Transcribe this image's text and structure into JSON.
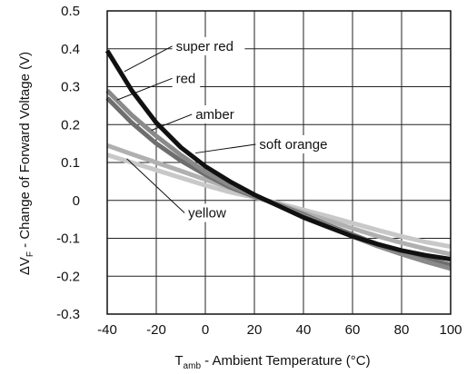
{
  "chart_data": {
    "type": "line",
    "xlabel_main": "T",
    "xlabel_sub": "amb",
    "xlabel_rest": " - Ambient Temperature (°C)",
    "ylabel_delta": "ΔV",
    "ylabel_sub": "F",
    "ylabel_rest": " - Change of Forward Voltage (V)",
    "xlim": [
      -40,
      100
    ],
    "ylim": [
      -0.3,
      0.5
    ],
    "xticks": [
      "-40",
      "-20",
      "0",
      "20",
      "40",
      "60",
      "80",
      "100"
    ],
    "yticks": [
      "0.5",
      "0.4",
      "0.3",
      "0.2",
      "0.1",
      "0",
      "-0.1",
      "-0.2",
      "-0.3"
    ],
    "grid": true,
    "legend": "annotations on curves",
    "series": [
      {
        "name": "super red",
        "color": "#111111",
        "x": [
          -40,
          -30,
          -20,
          -10,
          0,
          10,
          20,
          25,
          30,
          40,
          50,
          60,
          70,
          80,
          90,
          100
        ],
        "y": [
          0.395,
          0.29,
          0.205,
          0.14,
          0.09,
          0.05,
          0.015,
          0.0,
          -0.015,
          -0.045,
          -0.07,
          -0.095,
          -0.115,
          -0.132,
          -0.145,
          -0.155
        ]
      },
      {
        "name": "red",
        "color": "#8a8a8a",
        "x": [
          -40,
          -30,
          -20,
          -10,
          0,
          10,
          20,
          25,
          30,
          40,
          50,
          60,
          70,
          80,
          90,
          100
        ],
        "y": [
          0.29,
          0.225,
          0.17,
          0.12,
          0.075,
          0.04,
          0.012,
          0.0,
          -0.013,
          -0.04,
          -0.067,
          -0.095,
          -0.12,
          -0.142,
          -0.162,
          -0.18
        ]
      },
      {
        "name": "amber",
        "color": "#6e6e6e",
        "x": [
          -40,
          -30,
          -20,
          -10,
          0,
          10,
          20,
          25,
          30,
          40,
          50,
          60,
          70,
          80,
          90,
          100
        ],
        "y": [
          0.27,
          0.205,
          0.15,
          0.105,
          0.068,
          0.035,
          0.01,
          0.0,
          -0.012,
          -0.037,
          -0.065,
          -0.09,
          -0.115,
          -0.137,
          -0.155,
          -0.17
        ]
      },
      {
        "name": "soft orange",
        "color": "#b0b0b0",
        "x": [
          -40,
          -30,
          -20,
          -10,
          0,
          10,
          20,
          25,
          30,
          40,
          50,
          60,
          70,
          80,
          90,
          100
        ],
        "y": [
          0.145,
          0.122,
          0.1,
          0.078,
          0.055,
          0.033,
          0.011,
          0.0,
          -0.011,
          -0.032,
          -0.053,
          -0.074,
          -0.094,
          -0.112,
          -0.128,
          -0.142
        ]
      },
      {
        "name": "yellow",
        "color": "#c8c8c8",
        "x": [
          -40,
          -30,
          -20,
          -10,
          0,
          10,
          20,
          25,
          30,
          40,
          50,
          60,
          70,
          80,
          90,
          100
        ],
        "y": [
          0.12,
          0.1,
          0.08,
          0.06,
          0.04,
          0.022,
          0.008,
          0.0,
          -0.008,
          -0.025,
          -0.042,
          -0.06,
          -0.078,
          -0.095,
          -0.11,
          -0.122
        ]
      }
    ],
    "annotations": [
      {
        "label": "super red",
        "tx": -12,
        "ty": 0.395,
        "px": -33,
        "py": 0.34
      },
      {
        "label": "red",
        "tx": -12,
        "ty": 0.31,
        "px": -36,
        "py": 0.265
      },
      {
        "label": "amber",
        "tx": -4,
        "ty": 0.215,
        "px": -22,
        "py": 0.185
      },
      {
        "label": "soft orange",
        "tx": 22,
        "ty": 0.136,
        "px": -4,
        "py": 0.125
      },
      {
        "label": "yellow",
        "tx": -7,
        "ty": -0.045,
        "px": -32,
        "py": 0.11
      }
    ]
  }
}
